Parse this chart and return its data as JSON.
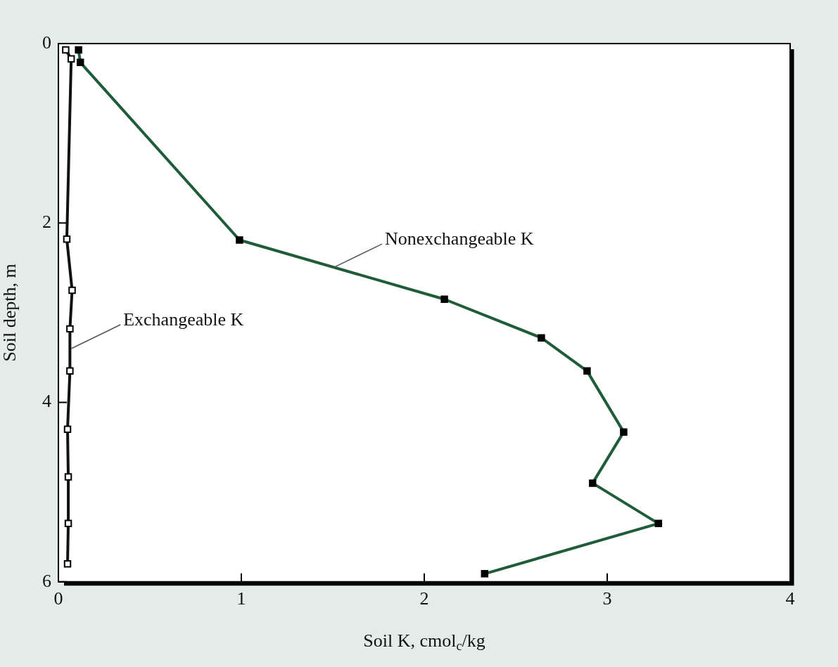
{
  "chart_data": {
    "type": "line",
    "xlabel": "Soil K, cmol$_{c}$/kg",
    "ylabel": "Soil depth, m",
    "xlim": [
      0,
      4
    ],
    "xticks": [
      0,
      1,
      2,
      3,
      4
    ],
    "ylim": [
      6,
      0
    ],
    "yticks": [
      0,
      2,
      4,
      6
    ],
    "grid": false,
    "legend": false,
    "marker": "square",
    "line_style": "solid",
    "series": [
      {
        "color": "#1f5c3a",
        "x": [
          0.11,
          0.12,
          0.99,
          2.11,
          2.64,
          2.89,
          3.09,
          2.92,
          3.28,
          2.33
        ],
        "values": [
          0.07,
          0.21,
          2.19,
          2.85,
          3.28,
          3.65,
          4.33,
          4.9,
          5.35,
          5.91
        ]
      },
      {
        "color": "#111111",
        "x": [
          0.04,
          0.07,
          0.046,
          0.075,
          0.063,
          0.063,
          0.05,
          0.054,
          0.054,
          0.05
        ],
        "values": [
          0.07,
          0.17,
          2.18,
          2.75,
          3.18,
          3.65,
          4.3,
          4.83,
          5.35,
          5.8
        ]
      }
    ],
    "annotations": [
      {
        "text": "Nonexchangeable K",
        "x": 1.5,
        "y": 2.5
      },
      {
        "text": "Exchangeable K",
        "x": 0.07,
        "y": 3.4
      }
    ]
  }
}
